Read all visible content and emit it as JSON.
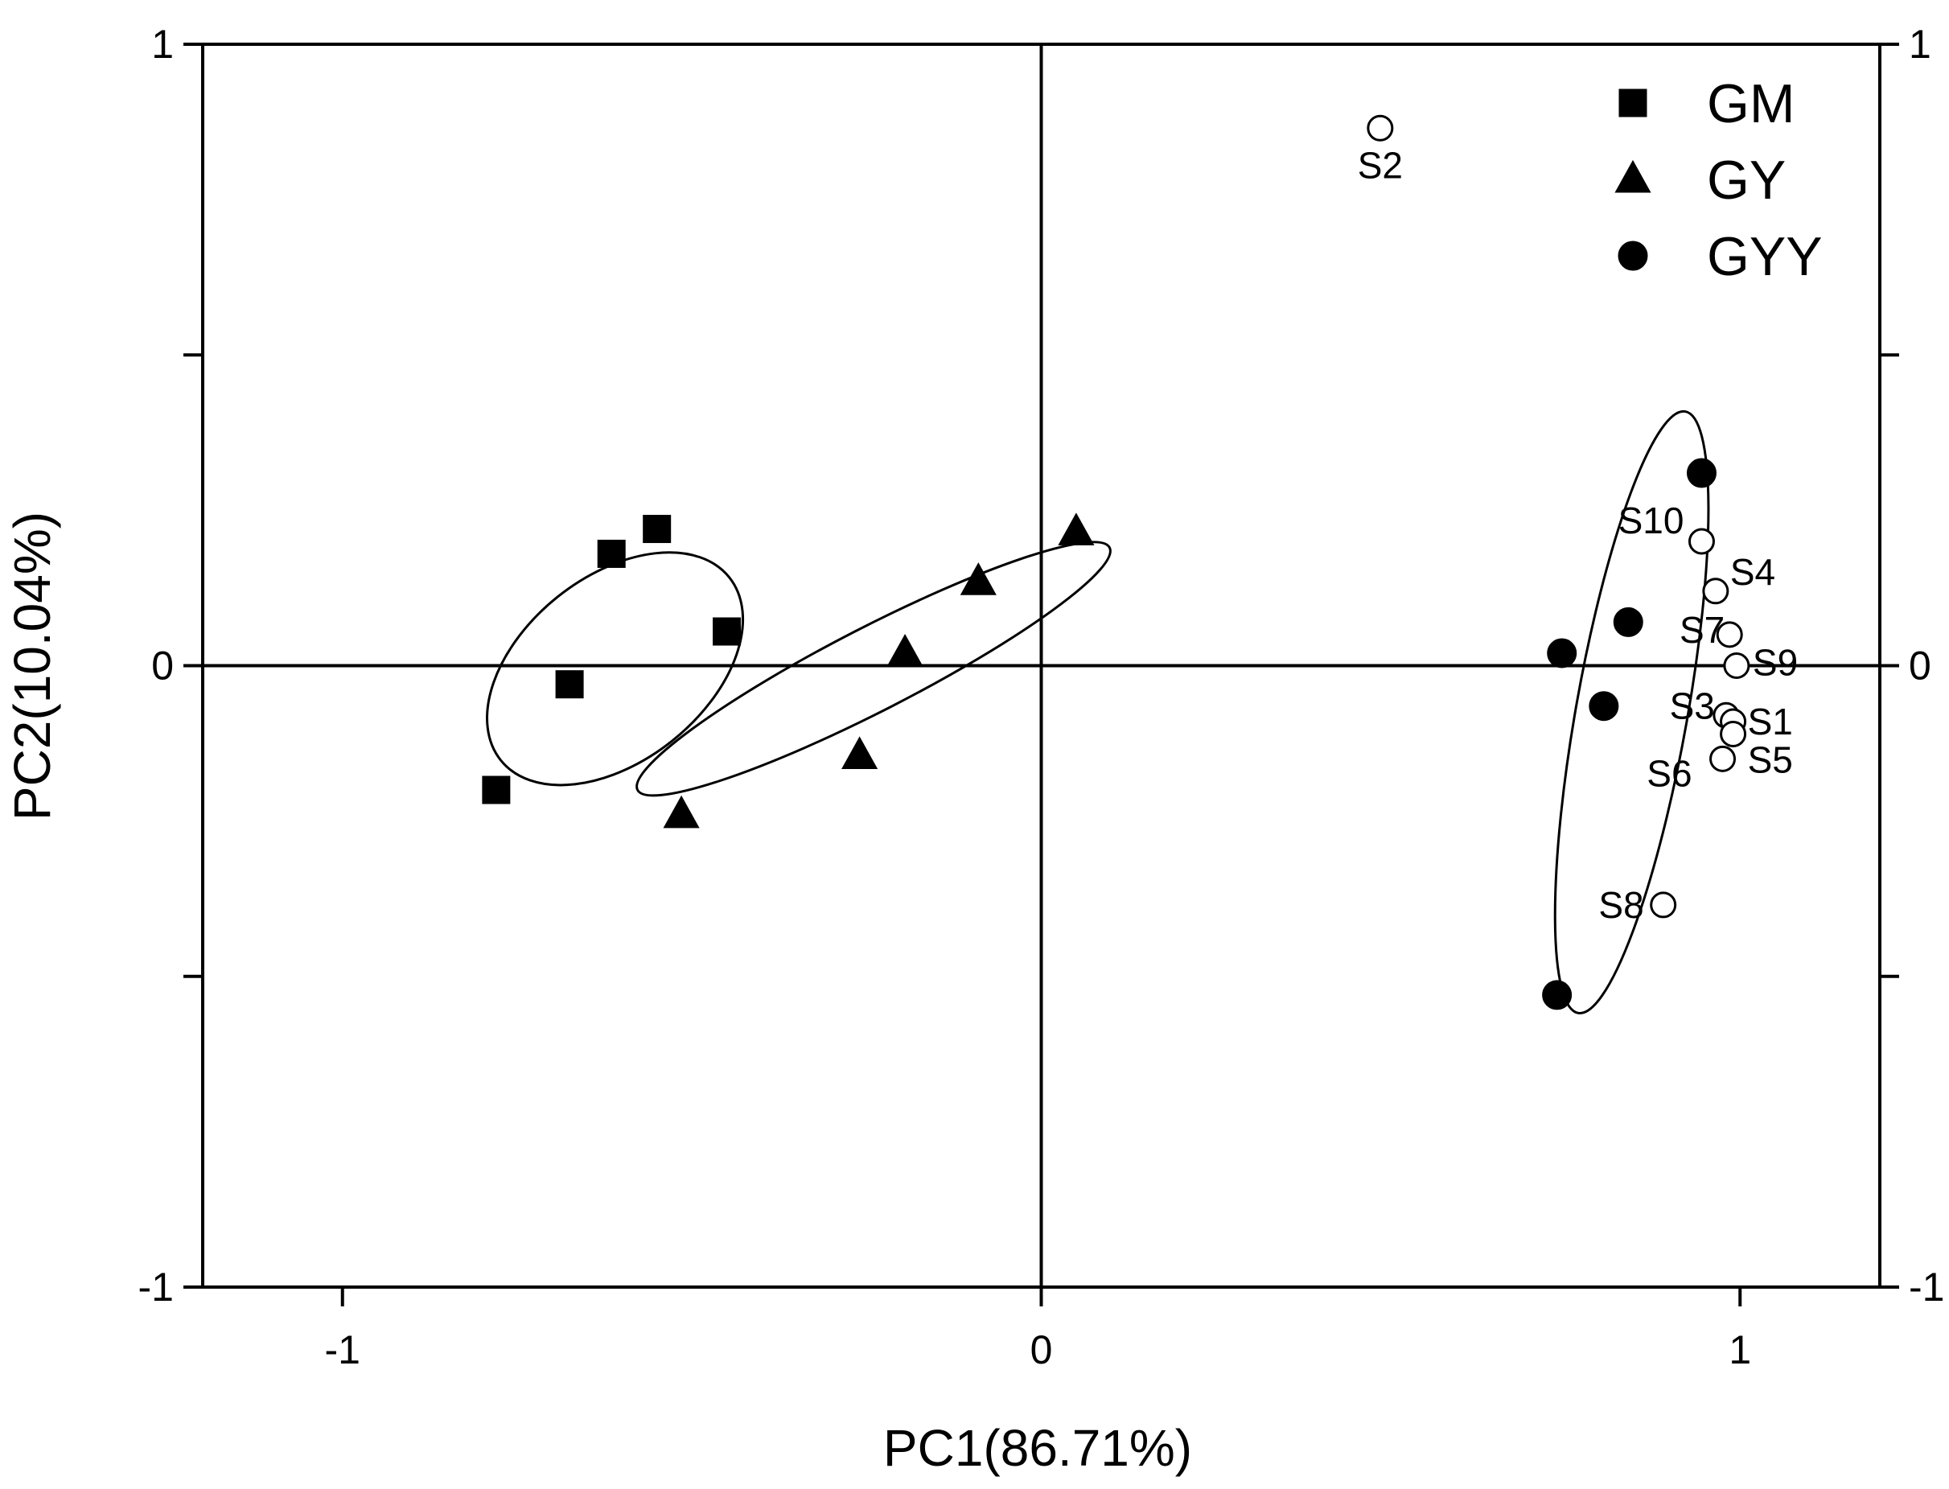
{
  "chart_data": {
    "type": "scatter",
    "title": "",
    "xlabel": "PC1(86.71%)",
    "ylabel": "PC2(10.04%)",
    "xlim": [
      -1.2,
      1.2
    ],
    "ylim": [
      -1,
      1
    ],
    "x_ticks": [
      -1,
      0,
      1
    ],
    "y_ticks": [
      -1,
      0,
      1
    ],
    "x_tick_labels": [
      "-1",
      "0",
      "1"
    ],
    "y_tick_labels": [
      "-1",
      "0",
      "1"
    ],
    "right_tick_labels": [
      "-1",
      "0",
      "1"
    ],
    "grid": false,
    "zero_lines": true,
    "legend_position": "top-right",
    "series": [
      {
        "name": "GM",
        "marker": "square",
        "filled": true,
        "points": [
          {
            "x": -0.55,
            "y": 0.22
          },
          {
            "x": -0.615,
            "y": 0.18
          },
          {
            "x": -0.45,
            "y": 0.055
          },
          {
            "x": -0.675,
            "y": -0.03
          },
          {
            "x": -0.78,
            "y": -0.2
          }
        ]
      },
      {
        "name": "GY",
        "marker": "triangle",
        "filled": true,
        "points": [
          {
            "x": 0.05,
            "y": 0.215
          },
          {
            "x": -0.09,
            "y": 0.135
          },
          {
            "x": -0.195,
            "y": 0.02
          },
          {
            "x": -0.26,
            "y": -0.145
          },
          {
            "x": -0.515,
            "y": -0.24
          }
        ]
      },
      {
        "name": "GYY",
        "marker": "circle",
        "filled": true,
        "points": [
          {
            "x": 0.945,
            "y": 0.31
          },
          {
            "x": 0.84,
            "y": 0.07
          },
          {
            "x": 0.745,
            "y": 0.02
          },
          {
            "x": 0.805,
            "y": -0.065
          },
          {
            "x": 0.738,
            "y": -0.53
          }
        ]
      }
    ],
    "samples": {
      "marker": "circle",
      "filled": false,
      "points": [
        {
          "label": "S2",
          "x": 0.485,
          "y": 0.865
        },
        {
          "label": "S10",
          "x": 0.945,
          "y": 0.2
        },
        {
          "label": "S4",
          "x": 0.965,
          "y": 0.12
        },
        {
          "label": "S7",
          "x": 0.985,
          "y": 0.05
        },
        {
          "label": "S9",
          "x": 0.995,
          "y": 0.0
        },
        {
          "label": "S3",
          "x": 0.98,
          "y": -0.08
        },
        {
          "label": "S1",
          "x": 0.99,
          "y": -0.09
        },
        {
          "label": "S5",
          "x": 0.99,
          "y": -0.11
        },
        {
          "label": "S6",
          "x": 0.975,
          "y": -0.15
        },
        {
          "label": "S8",
          "x": 0.89,
          "y": -0.385
        }
      ]
    },
    "ellipses": [
      {
        "group": "GM",
        "center": [
          -0.61,
          -0.005
        ],
        "rx": 0.22,
        "ry": 0.14,
        "rotation_deg": -42
      },
      {
        "group": "GY",
        "center": [
          -0.24,
          -0.005
        ],
        "rx": 0.39,
        "ry": 0.065,
        "rotation_deg": -30
      },
      {
        "group": "GYY",
        "center": [
          0.845,
          -0.075
        ],
        "rx": 0.49,
        "ry": 0.08,
        "rotation_deg": -81
      }
    ]
  }
}
